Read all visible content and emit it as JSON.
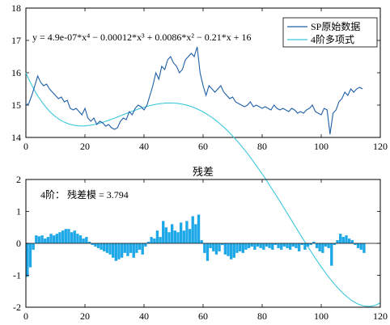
{
  "chart_data": [
    {
      "type": "line",
      "xlim": [
        0,
        120
      ],
      "ylim": [
        14,
        18
      ],
      "xticks": [
        0,
        20,
        40,
        60,
        80,
        100,
        120
      ],
      "yticks": [
        14,
        15,
        16,
        17,
        18
      ],
      "annotation": "y = 4.9e-07*x⁴ − 0.00012*x³ + 0.0086*x² − 0.21*x + 16",
      "legend_position": "top-right",
      "series": [
        {
          "name": "SP原始数据",
          "color": "#1f5fa8",
          "x": [
            0,
            1,
            2,
            3,
            4,
            5,
            6,
            7,
            8,
            9,
            10,
            11,
            12,
            13,
            14,
            15,
            16,
            17,
            18,
            19,
            20,
            21,
            22,
            23,
            24,
            25,
            26,
            27,
            28,
            29,
            30,
            31,
            32,
            33,
            34,
            35,
            36,
            37,
            38,
            39,
            40,
            41,
            42,
            43,
            44,
            45,
            46,
            47,
            48,
            49,
            50,
            51,
            52,
            53,
            54,
            55,
            56,
            57,
            58,
            59,
            60,
            61,
            62,
            63,
            64,
            65,
            66,
            67,
            68,
            69,
            70,
            71,
            72,
            73,
            74,
            75,
            76,
            77,
            78,
            79,
            80,
            81,
            82,
            83,
            84,
            85,
            86,
            87,
            88,
            89,
            90,
            91,
            92,
            93,
            94,
            95,
            96,
            97,
            98,
            99,
            100,
            101,
            102,
            103,
            104,
            105,
            106,
            107,
            108,
            109,
            110,
            111,
            112,
            113,
            114
          ],
          "y": [
            15.0,
            15.05,
            15.3,
            15.6,
            15.9,
            15.7,
            15.6,
            15.65,
            15.5,
            15.4,
            15.3,
            15.2,
            15.25,
            15.1,
            15.15,
            14.9,
            14.85,
            14.9,
            14.8,
            14.7,
            14.9,
            14.6,
            14.5,
            14.6,
            14.4,
            14.5,
            14.45,
            14.35,
            14.4,
            14.3,
            14.25,
            14.3,
            14.5,
            14.6,
            14.55,
            14.8,
            14.7,
            14.9,
            15.0,
            14.95,
            14.85,
            15.0,
            15.3,
            15.6,
            16.0,
            15.8,
            16.2,
            16.1,
            16.4,
            16.5,
            16.3,
            16.2,
            16.0,
            16.1,
            16.4,
            16.5,
            16.6,
            16.5,
            16.8,
            16.0,
            15.6,
            15.3,
            15.6,
            15.5,
            15.4,
            15.5,
            15.6,
            15.4,
            15.3,
            15.2,
            15.25,
            15.1,
            15.05,
            15.0,
            14.95,
            15.0,
            15.1,
            14.95,
            15.0,
            14.95,
            14.9,
            14.95,
            14.9,
            14.85,
            15.0,
            14.9,
            14.85,
            14.9,
            14.85,
            14.8,
            14.9,
            14.85,
            14.75,
            14.8,
            14.75,
            14.85,
            14.9,
            15.0,
            14.8,
            14.75,
            14.7,
            14.9,
            14.85,
            14.1,
            14.75,
            14.85,
            15.1,
            15.2,
            15.4,
            15.3,
            15.5,
            15.4,
            15.5,
            15.55,
            15.5
          ]
        },
        {
          "name": "4阶多项式",
          "color": "#3cc8dc",
          "formula": "4.9e-07*x^4 - 0.00012*x^3 + 0.0086*x^2 - 0.21*x + 16",
          "x_range": [
            0,
            120
          ]
        }
      ]
    },
    {
      "type": "bar",
      "title": "残差",
      "xlim": [
        0,
        120
      ],
      "ylim": [
        -2,
        2
      ],
      "xticks": [
        0,
        20,
        40,
        60,
        80,
        100,
        120
      ],
      "yticks": [
        -2,
        -1,
        0,
        1,
        2
      ],
      "annotation": "4阶：  残差模 = 3.794",
      "color": "#1fa8e8",
      "values": [
        -1.05,
        -0.75,
        -0.2,
        0.25,
        0.22,
        0.25,
        0.15,
        0.2,
        0.3,
        0.25,
        0.3,
        0.35,
        0.4,
        0.45,
        0.45,
        0.35,
        0.4,
        0.3,
        0.25,
        0.15,
        0.2,
        0.05,
        -0.05,
        -0.1,
        -0.15,
        -0.2,
        -0.25,
        -0.3,
        -0.35,
        -0.45,
        -0.55,
        -0.5,
        -0.45,
        -0.3,
        -0.4,
        -0.3,
        -0.45,
        -0.3,
        -0.2,
        -0.35,
        -0.1,
        0.05,
        0.2,
        0.15,
        0.4,
        0.2,
        0.7,
        0.5,
        0.35,
        0.6,
        0.4,
        0.35,
        0.65,
        0.4,
        0.7,
        0.45,
        0.85,
        0.6,
        0.9,
        0.1,
        -0.3,
        -0.55,
        -0.15,
        -0.25,
        -0.35,
        -0.25,
        -0.05,
        -0.35,
        -0.4,
        -0.5,
        -0.45,
        -0.3,
        -0.25,
        -0.3,
        -0.2,
        -0.15,
        -0.1,
        -0.2,
        -0.1,
        -0.15,
        -0.2,
        -0.1,
        -0.15,
        -0.2,
        -0.05,
        -0.15,
        -0.2,
        -0.1,
        -0.15,
        -0.2,
        -0.1,
        -0.15,
        -0.25,
        -0.05,
        -0.2,
        -0.1,
        -0.05,
        0.05,
        -0.15,
        -0.25,
        -0.3,
        -0.1,
        -0.15,
        -0.7,
        -0.05,
        0.1,
        0.3,
        0.2,
        0.25,
        0.15,
        0.1,
        -0.05,
        -0.15,
        -0.2,
        -0.3
      ]
    }
  ]
}
